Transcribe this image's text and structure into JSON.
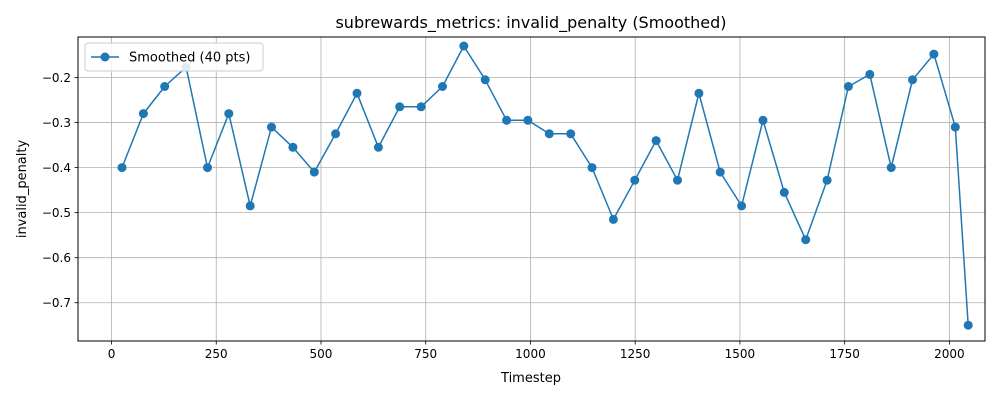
{
  "chart_data": {
    "type": "line",
    "title": "subrewards_metrics: invalid_penalty (Smoothed)",
    "xlabel": "Timestep",
    "ylabel": "invalid_penalty",
    "xlim": [
      -80,
      2085
    ],
    "ylim": [
      -0.785,
      -0.11
    ],
    "xticks": [
      0,
      250,
      500,
      750,
      1000,
      1250,
      1500,
      1750,
      2000
    ],
    "yticks": [
      -0.7,
      -0.6,
      -0.5,
      -0.4,
      -0.3,
      -0.2
    ],
    "ytick_labels": [
      "−0.7",
      "−0.6",
      "−0.5",
      "−0.4",
      "−0.3",
      "−0.2"
    ],
    "grid": true,
    "legend_position": "top-left",
    "color": "#1f77b4",
    "series": [
      {
        "name": "Smoothed (40 pts)",
        "x": [
          25,
          76,
          127,
          178,
          229,
          280,
          331,
          382,
          433,
          484,
          535,
          586,
          637,
          688,
          739,
          790,
          841,
          892,
          943,
          994,
          1045,
          1096,
          1147,
          1198,
          1249,
          1300,
          1351,
          1402,
          1453,
          1504,
          1555,
          1606,
          1657,
          1708,
          1759,
          1810,
          1861,
          1912,
          1963,
          2014,
          2045
        ],
        "y": [
          -0.4,
          -0.28,
          -0.22,
          -0.177,
          -0.4,
          -0.28,
          -0.485,
          -0.31,
          -0.355,
          -0.41,
          -0.325,
          -0.235,
          -0.355,
          -0.265,
          -0.265,
          -0.22,
          -0.13,
          -0.205,
          -0.295,
          -0.295,
          -0.325,
          -0.325,
          -0.4,
          -0.515,
          -0.428,
          -0.34,
          -0.428,
          -0.235,
          -0.41,
          -0.485,
          -0.295,
          -0.455,
          -0.56,
          -0.428,
          -0.22,
          -0.193,
          -0.4,
          -0.205,
          -0.148,
          -0.31,
          -0.75
        ]
      }
    ]
  }
}
